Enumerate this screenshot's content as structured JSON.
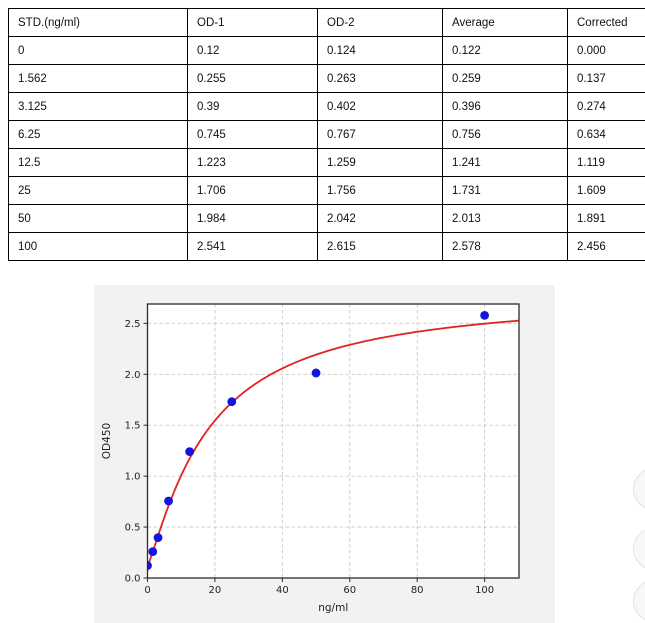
{
  "table": {
    "headers": [
      "STD.(ng/ml)",
      "OD-1",
      "OD-2",
      "Average",
      "Corrected"
    ],
    "rows": [
      [
        "0",
        "0.12",
        "0.124",
        "0.122",
        "0.000"
      ],
      [
        "1.562",
        "0.255",
        "0.263",
        "0.259",
        "0.137"
      ],
      [
        "3.125",
        "0.39",
        "0.402",
        "0.396",
        "0.274"
      ],
      [
        "6.25",
        "0.745",
        "0.767",
        "0.756",
        "0.634"
      ],
      [
        "12.5",
        "1.223",
        "1.259",
        "1.241",
        "1.119"
      ],
      [
        "25",
        "1.706",
        "1.756",
        "1.731",
        "1.609"
      ],
      [
        "50",
        "1.984",
        "2.042",
        "2.013",
        "1.891"
      ],
      [
        "100",
        "2.541",
        "2.615",
        "2.578",
        "2.456"
      ]
    ]
  },
  "chart_data": {
    "type": "scatter",
    "title": "",
    "xlabel": "ng/ml",
    "ylabel": "OD450",
    "x": [
      0,
      1.562,
      3.125,
      6.25,
      12.5,
      25,
      50,
      100
    ],
    "y": [
      0.122,
      0.259,
      0.396,
      0.756,
      1.241,
      1.731,
      2.013,
      2.578
    ],
    "xticks": [
      0,
      20,
      40,
      60,
      80,
      100
    ],
    "yticks": [
      0,
      0.5,
      1.0,
      1.5,
      2.0,
      2.5
    ],
    "xlim": [
      0,
      110.2
    ],
    "ylim": [
      0,
      2.69
    ],
    "grid": true,
    "legend": "none",
    "fit_curve": {
      "model": "4pl",
      "a": 0.122,
      "b": 1.2,
      "c": 18,
      "d": 2.8
    },
    "point_color": "#1414dd",
    "curve_color": "#e32222",
    "figure_bg": "#f2f2f2",
    "plot_bg": "#ffffff",
    "spine_color": "#2b2b2b"
  }
}
